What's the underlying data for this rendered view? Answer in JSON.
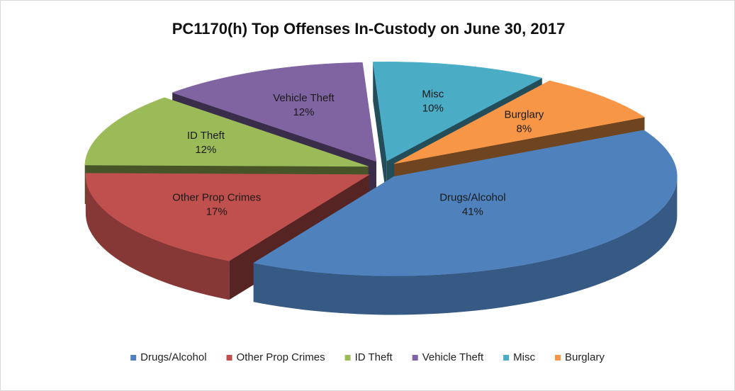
{
  "chart_data": {
    "type": "pie",
    "title": "PC1170(h) Top Offenses In-Custody on June 30, 2017",
    "categories": [
      "Drugs/Alcohol",
      "Other Prop Crimes",
      "ID Theft",
      "Vehicle Theft",
      "Misc",
      "Burglary"
    ],
    "values": [
      41,
      17,
      12,
      12,
      10,
      8
    ],
    "value_labels": [
      "41%",
      "17%",
      "12%",
      "12%",
      "10%",
      "8%"
    ],
    "colors": [
      "#4f81bd",
      "#c0504d",
      "#9bbb59",
      "#8064a2",
      "#4bacc6",
      "#f79646"
    ],
    "legend": "bottom"
  }
}
